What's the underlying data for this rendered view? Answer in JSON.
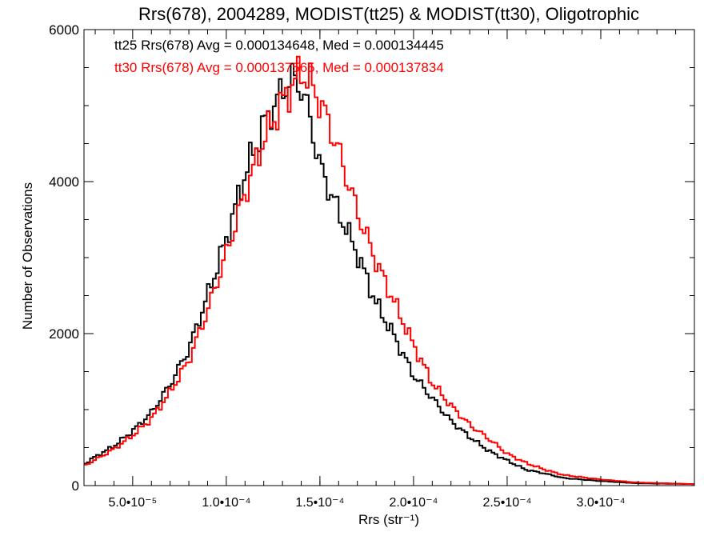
{
  "chart_data": {
    "type": "line",
    "title": "Rrs(678), 2004289, MODIST(tt25) & MODIST(tt30), Oligotrophic",
    "xlabel": "Rrs (str⁻¹)",
    "ylabel": "Number of Observations",
    "xlim": [
      2.4e-05,
      0.00035
    ],
    "ylim": [
      0,
      6000
    ],
    "x_ticks": [
      5e-05,
      0.0001,
      0.00015,
      0.0002,
      0.00025,
      0.0003
    ],
    "x_tick_labels": [
      "5.0•10⁻⁵",
      "1.0•10⁻⁴",
      "1.5•10⁻⁴",
      "2.0•10⁻⁴",
      "2.5•10⁻⁴",
      "3.0•10⁻⁴"
    ],
    "y_ticks": [
      0,
      2000,
      4000,
      6000
    ],
    "y_tick_labels": [
      "0",
      "2000",
      "4000",
      "6000"
    ],
    "grid": false,
    "legend": "top-left",
    "series": [
      {
        "name": "tt25",
        "color": "#000000",
        "label": "tt25 Rrs(678) Avg = 0.000134648, Med = 0.000134445",
        "x": [
          2.4e-05,
          3e-05,
          4e-05,
          5e-05,
          6e-05,
          7e-05,
          8e-05,
          9e-05,
          0.0001,
          0.00011,
          0.00012,
          0.00013,
          0.000135,
          0.00014,
          0.000145,
          0.00015,
          0.00016,
          0.00017,
          0.00018,
          0.00019,
          0.0002,
          0.00021,
          0.00022,
          0.00023,
          0.00024,
          0.00025,
          0.00026,
          0.00027,
          0.00028,
          0.0003,
          0.00032,
          0.00035
        ],
        "y": [
          280,
          380,
          520,
          720,
          960,
          1330,
          1800,
          2500,
          3250,
          4100,
          4750,
          5200,
          5350,
          5250,
          4800,
          4200,
          3600,
          3050,
          2400,
          1950,
          1450,
          1150,
          850,
          640,
          460,
          330,
          210,
          160,
          100,
          60,
          30,
          20
        ]
      },
      {
        "name": "tt30",
        "color": "#ff0000",
        "label": "tt30 Rrs(678) Avg = 0.000137565, Med = 0.000137834",
        "x": [
          2.4e-05,
          3e-05,
          4e-05,
          5e-05,
          6e-05,
          7e-05,
          8e-05,
          9e-05,
          0.0001,
          0.00011,
          0.00012,
          0.00013,
          0.00014,
          0.000145,
          0.00015,
          0.000155,
          0.00016,
          0.00017,
          0.00018,
          0.00019,
          0.0002,
          0.00021,
          0.00022,
          0.00023,
          0.00024,
          0.00025,
          0.00026,
          0.00027,
          0.00028,
          0.0003,
          0.00032,
          0.00035
        ],
        "y": [
          260,
          340,
          480,
          660,
          880,
          1230,
          1650,
          2300,
          3050,
          3850,
          4550,
          5050,
          5450,
          5300,
          5050,
          4750,
          4400,
          3600,
          2950,
          2400,
          1850,
          1350,
          1050,
          800,
          620,
          420,
          300,
          210,
          140,
          80,
          40,
          20
        ]
      }
    ]
  }
}
